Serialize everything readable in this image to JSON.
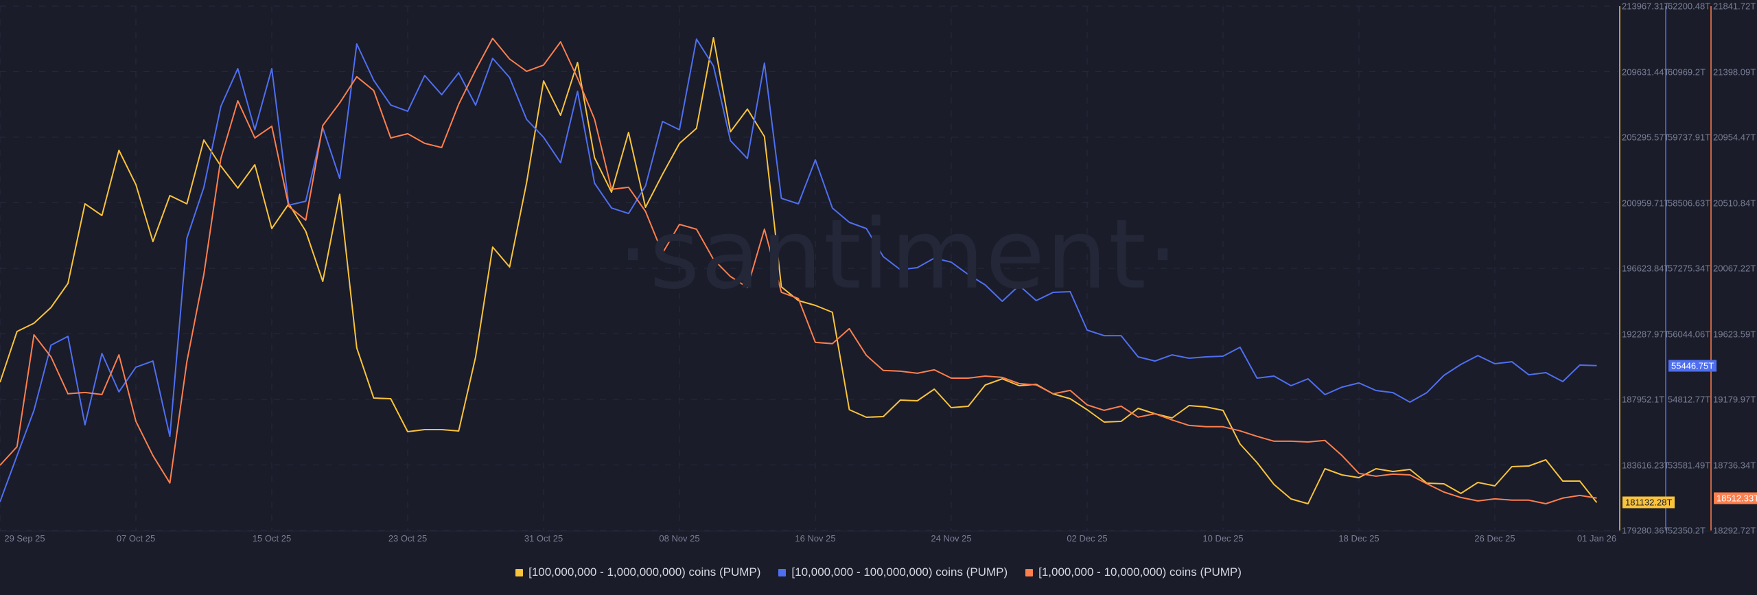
{
  "watermark": "·santiment·",
  "colors": {
    "background": "#1a1c2a",
    "grid": "#272a3d",
    "axis_text": "#7a7f94",
    "series": [
      "#f9c33c",
      "#4f6ff0",
      "#ff7f4d"
    ]
  },
  "legend": [
    {
      "label": "[100,000,000 - 1,000,000,000) coins (PUMP)",
      "color": "#f9c33c"
    },
    {
      "label": "[10,000,000 - 100,000,000) coins (PUMP)",
      "color": "#4f6ff0"
    },
    {
      "label": "[1,000,000 - 10,000,000) coins (PUMP)",
      "color": "#ff7f4d"
    }
  ],
  "chart_data": {
    "type": "line",
    "title": "",
    "xlabel": "",
    "ylabel": "",
    "grid": true,
    "legend_position": "bottom",
    "x_start": "29 Sep 25",
    "x_end": "01 Jan 26",
    "x_interval": "1 day",
    "x_tick_labels": [
      "29 Sep 25",
      "07 Oct 25",
      "15 Oct 25",
      "23 Oct 25",
      "31 Oct 25",
      "08 Nov 25",
      "16 Nov 25",
      "24 Nov 25",
      "02 Dec 25",
      "10 Dec 25",
      "18 Dec 25",
      "26 Dec 25",
      "01 Jan 26"
    ],
    "x_tick_days": [
      0,
      8,
      16,
      24,
      32,
      40,
      48,
      56,
      64,
      72,
      80,
      88,
      94
    ],
    "axes": [
      {
        "series": 0,
        "color": "#f9c33c",
        "ylim": [
          179280.36,
          213967.31
        ],
        "tick_labels": [
          "213967.31T",
          "209631.44T",
          "205295.57T",
          "200959.71T",
          "196623.84T",
          "192287.97T",
          "187952.1T",
          "183616.23T",
          "179280.36T"
        ],
        "last_value_label": "181132.28T"
      },
      {
        "series": 1,
        "color": "#4f6ff0",
        "ylim": [
          52350.2,
          62200.48
        ],
        "tick_labels": [
          "62200.48T",
          "60969.2T",
          "59737.91T",
          "58506.63T",
          "57275.34T",
          "56044.06T",
          "54812.77T",
          "53581.49T",
          "52350.2T"
        ],
        "last_value_label": "55446.75T"
      },
      {
        "series": 2,
        "color": "#ff7f4d",
        "ylim": [
          18292.72,
          21841.72
        ],
        "tick_labels": [
          "21841.72T",
          "21398.09T",
          "20954.47T",
          "20510.84T",
          "20067.22T",
          "19623.59T",
          "19179.97T",
          "18736.34T",
          "18292.72T"
        ],
        "last_value_label": "18512.33T"
      }
    ],
    "series": [
      {
        "name": "[100,000,000 - 1,000,000,000) coins (PUMP)",
        "unit": "T",
        "values": [
          189088,
          192447,
          192992,
          194036,
          195625,
          200892,
          200120,
          204433,
          202163,
          198395,
          201437,
          200892,
          205114,
          203389,
          201936,
          203480,
          199257,
          200892,
          199076,
          195762,
          201527,
          191358,
          188044,
          187998,
          185819,
          185955,
          185955,
          185864,
          190768,
          198032,
          196715,
          202299,
          209018,
          206748,
          210244,
          203934,
          201664,
          205613,
          200665,
          202844,
          204887,
          205886,
          211879,
          205659,
          207157,
          205341,
          195398,
          194490,
          194173,
          193719,
          187272,
          186772,
          186818,
          187907,
          187862,
          188634,
          187408,
          187499,
          188906,
          189315,
          188861,
          188952,
          188316,
          187998,
          187272,
          186455,
          186500,
          187363,
          186999,
          186727,
          187544,
          187453,
          187226,
          185002,
          183776,
          182323,
          181370,
          181052,
          183367,
          182959,
          182777,
          183367,
          183186,
          183322,
          182414,
          182369,
          181733,
          182459,
          182232,
          183504,
          183549,
          183958,
          182550,
          182550,
          181132.28
        ]
      },
      {
        "name": "[10,000,000 - 100,000,000) coins (PUMP)",
        "unit": "T",
        "values": [
          52891,
          53755,
          54606,
          55831,
          55998,
          54335,
          55676,
          54954,
          55418,
          55534,
          54116,
          57842,
          58796,
          60318,
          61027,
          59879,
          61027,
          58461,
          58538,
          59918,
          58964,
          61491,
          60808,
          60343,
          60227,
          60898,
          60537,
          60949,
          60343,
          61220,
          60859,
          60073,
          59737,
          59260,
          60601,
          58874,
          58409,
          58306,
          58822,
          60034,
          59879,
          61581,
          61078,
          59673,
          59338,
          61130,
          58590,
          58487,
          59312,
          58409,
          58139,
          58023,
          57494,
          57249,
          57288,
          57468,
          57391,
          57159,
          56965,
          56656,
          56953,
          56669,
          56824,
          56837,
          56115,
          56011,
          56011,
          55612,
          55534,
          55650,
          55586,
          55612,
          55625,
          55792,
          55212,
          55251,
          55070,
          55199,
          54903,
          55044,
          55122,
          54980,
          54941,
          54761,
          54941,
          55264,
          55470,
          55637,
          55483,
          55521,
          55276,
          55315,
          55148,
          55457,
          55446.75
        ]
      },
      {
        "name": "[1,000,000 - 10,000,000) coins (PUMP)",
        "unit": "T",
        "values": [
          18734,
          18860,
          19617,
          19468,
          19218,
          19227,
          19213,
          19482,
          19032,
          18800,
          18614,
          19436,
          20026,
          20811,
          21201,
          20950,
          21029,
          20486,
          20393,
          21034,
          21187,
          21364,
          21271,
          20950,
          20978,
          20913,
          20885,
          21178,
          21410,
          21624,
          21484,
          21401,
          21443,
          21600,
          21354,
          21076,
          20602,
          20616,
          20453,
          20170,
          20365,
          20332,
          20128,
          20012,
          19938,
          20332,
          19905,
          19863,
          19566,
          19557,
          19659,
          19478,
          19376,
          19371,
          19357,
          19380,
          19324,
          19324,
          19338,
          19329,
          19287,
          19278,
          19218,
          19241,
          19143,
          19106,
          19134,
          19060,
          19083,
          19041,
          19004,
          18995,
          18995,
          18967,
          18930,
          18897,
          18897,
          18892,
          18902,
          18800,
          18679,
          18660,
          18674,
          18669,
          18609,
          18553,
          18516,
          18493,
          18507,
          18498,
          18498,
          18474,
          18512,
          18530,
          18512.33
        ]
      }
    ]
  }
}
